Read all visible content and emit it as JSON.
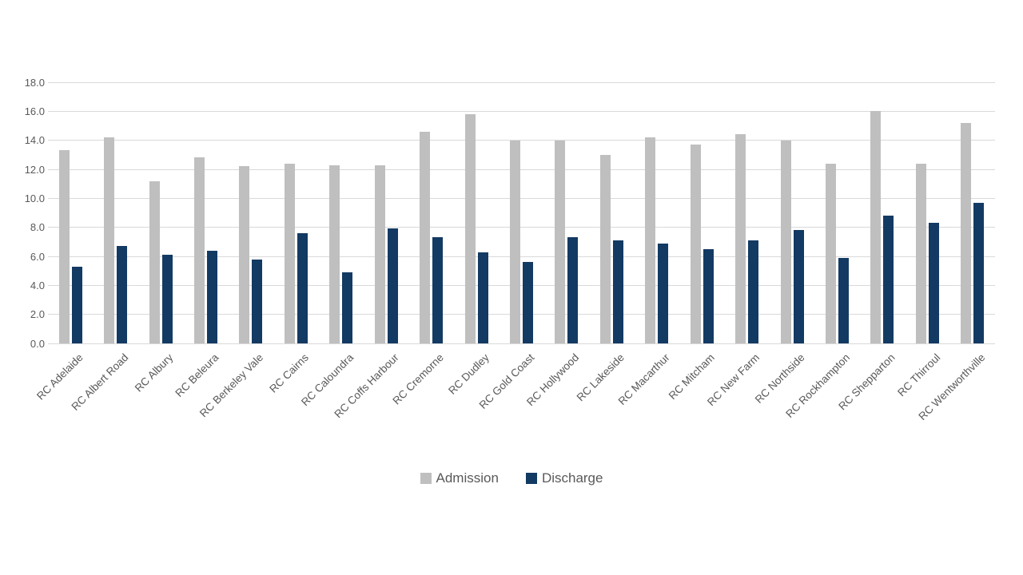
{
  "legend": {
    "items": [
      {
        "label": "Admission"
      },
      {
        "label": "Discharge"
      }
    ]
  },
  "chart_data": {
    "type": "bar",
    "title": "",
    "xlabel": "",
    "ylabel": "",
    "categories": [
      "RC Adelaide",
      "RC Albert Road",
      "RC Albury",
      "RC Beleura",
      "RC Berkeley Vale",
      "RC Cairns",
      "RC Caloundra",
      "RC Coffs Harbour",
      "RC Cremorne",
      "RC Dudley",
      "RC Gold Coast",
      "RC Hollywood",
      "RC Lakeside",
      "RC Macarthur",
      "RC Mitcham",
      "RC New Farm",
      "RC Northside",
      "RC Rockhampton",
      "RC Shepparton",
      "RC Thirroul",
      "RC Wentworthville"
    ],
    "series": [
      {
        "name": "Admission",
        "color": "#bfbfbf",
        "values": [
          13.3,
          14.2,
          11.2,
          12.8,
          12.2,
          12.4,
          12.3,
          12.3,
          14.6,
          15.8,
          14.0,
          14.0,
          13.0,
          14.2,
          13.7,
          14.4,
          14.0,
          12.4,
          16.0,
          12.4,
          15.2
        ]
      },
      {
        "name": "Discharge",
        "color": "#133a63",
        "values": [
          5.3,
          6.7,
          6.1,
          6.4,
          5.8,
          7.6,
          4.9,
          7.9,
          7.3,
          6.3,
          5.6,
          7.3,
          7.1,
          6.9,
          6.5,
          7.1,
          7.8,
          5.9,
          8.8,
          8.3,
          9.7
        ]
      }
    ],
    "ylim": [
      0,
      18
    ],
    "ytick_step": 2,
    "yticks": [
      "0.0",
      "2.0",
      "4.0",
      "6.0",
      "8.0",
      "10.0",
      "12.0",
      "14.0",
      "16.0",
      "18.0"
    ],
    "grid": true,
    "legend_position": "bottom",
    "colors": {
      "gridline": "#d9d9d9",
      "axis_text": "#595959",
      "legend_text": "#595959"
    }
  }
}
